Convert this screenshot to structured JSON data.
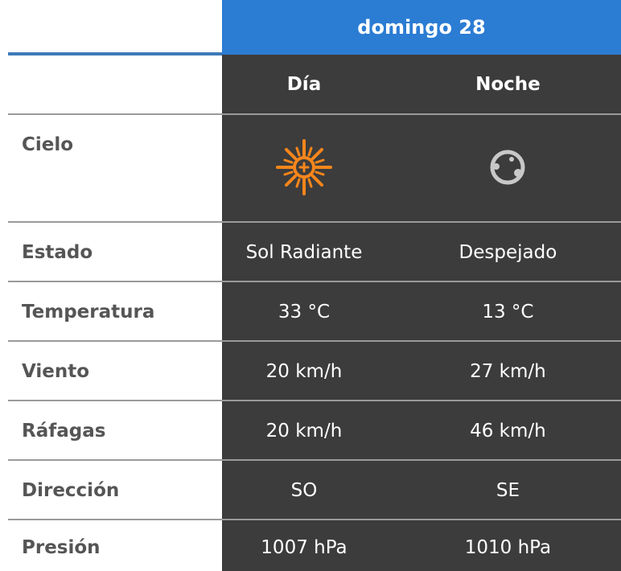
{
  "header": {
    "day_title": "domingo 28",
    "col_day": "Día",
    "col_night": "Noche"
  },
  "colors": {
    "header_blue": "#2b7cd3",
    "dark_bg": "#3c3c3c",
    "sun": "#f7861b",
    "moon": "#c8c8c8"
  },
  "cielo": {
    "label": "Cielo",
    "day_icon": "sun-icon",
    "night_icon": "clear-night-moon-icon"
  },
  "rows": [
    {
      "label": "Estado",
      "day": "Sol Radiante",
      "night": "Despejado"
    },
    {
      "label": "Temperatura",
      "day": "33 °C",
      "night": "13 °C"
    },
    {
      "label": "Viento",
      "day": "20 km/h",
      "night": "27 km/h"
    },
    {
      "label": "Ráfagas",
      "day": "20 km/h",
      "night": "46 km/h"
    },
    {
      "label": "Dirección",
      "day": "SO",
      "night": "SE"
    },
    {
      "label": "Presión",
      "day": "1007 hPa",
      "night": "1010 hPa"
    }
  ]
}
